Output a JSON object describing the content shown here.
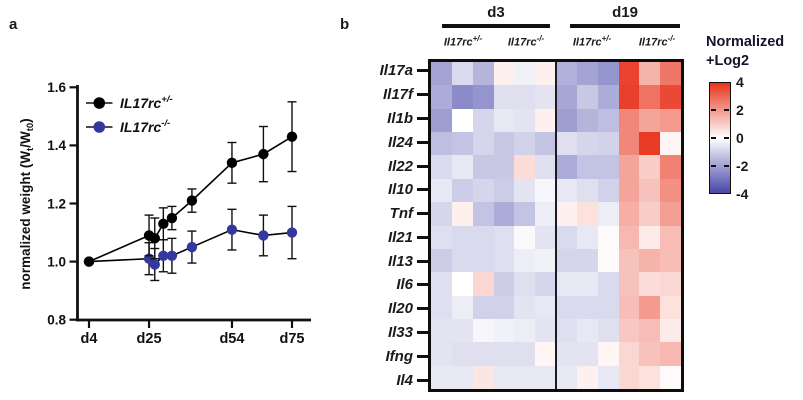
{
  "panel_a": {
    "label": "a"
  },
  "panel_b": {
    "label": "b"
  },
  "chart_data": [
    {
      "type": "line",
      "panel": "a",
      "title": "",
      "ylabel_parts": {
        "pre": "normalized weight (W",
        "sub1": "t",
        "mid": "/W",
        "sub2": "t0",
        "post": ")"
      },
      "ylim": [
        0.8,
        1.6
      ],
      "yticks": [
        "0.8",
        "1.0",
        "1.2",
        "1.4",
        "1.6"
      ],
      "xticks": [
        {
          "label": "d4",
          "day": 4
        },
        {
          "label": "d25",
          "day": 25
        },
        {
          "label": "d54",
          "day": 54
        },
        {
          "label": "d75",
          "day": 75
        }
      ],
      "x_days": [
        4,
        25,
        27,
        30,
        33,
        40,
        54,
        65,
        75
      ],
      "legend_position": "top-left",
      "series": [
        {
          "name_base": "IL17rc",
          "name_sup": "+/-",
          "marker_color": "#000000",
          "line_color": "#000000",
          "values": [
            1.0,
            1.09,
            1.08,
            1.13,
            1.15,
            1.21,
            1.34,
            1.37,
            1.43
          ],
          "errors": [
            0,
            0.07,
            0.07,
            0.055,
            0.04,
            0.04,
            0.07,
            0.095,
            0.12
          ]
        },
        {
          "name_base": "IL17rc",
          "name_sup": "-/-",
          "marker_color": "#34379d",
          "line_color": "#000000",
          "values": [
            1.0,
            1.01,
            0.99,
            1.02,
            1.02,
            1.05,
            1.11,
            1.09,
            1.1
          ],
          "errors": [
            0,
            0.055,
            0.055,
            0.055,
            0.06,
            0.055,
            0.07,
            0.07,
            0.09
          ]
        }
      ]
    },
    {
      "type": "heatmap",
      "panel": "b",
      "group_headers": [
        "d3",
        "d19"
      ],
      "col_groups": [
        {
          "day": "d3",
          "base": "Il17rc",
          "sup": "+/-",
          "cols": 3
        },
        {
          "day": "d3",
          "base": "Il17rc",
          "sup": "-/-",
          "cols": 3
        },
        {
          "day": "d19",
          "base": "Il17rc",
          "sup": "+/-",
          "cols": 3
        },
        {
          "day": "d19",
          "base": "Il17rc",
          "sup": "-/-",
          "cols": 3
        }
      ],
      "rows": [
        "Il17a",
        "Il17f",
        "Il1b",
        "Il24",
        "Il22",
        "Il10",
        "Tnf",
        "Il21",
        "Il13",
        "Il6",
        "Il20",
        "Il33",
        "Ifng",
        "Il4"
      ],
      "values": [
        [
          -2.0,
          -0.8,
          -1.6,
          0.3,
          -0.3,
          0.3,
          -1.7,
          -2.0,
          -2.3,
          3.7,
          1.5,
          2.7
        ],
        [
          -1.8,
          -2.5,
          -2.3,
          -0.7,
          -0.7,
          -0.6,
          -1.9,
          -1.2,
          -1.8,
          3.8,
          2.8,
          3.6
        ],
        [
          -2.1,
          0.0,
          -0.9,
          -0.5,
          -0.6,
          0.3,
          -2.1,
          -1.6,
          -1.4,
          2.4,
          1.8,
          2.0
        ],
        [
          -1.4,
          -1.3,
          -0.9,
          -1.2,
          -1.0,
          -1.3,
          -0.7,
          -0.9,
          -1.0,
          2.4,
          3.9,
          0.2
        ],
        [
          -0.8,
          -0.5,
          -1.2,
          -1.2,
          0.7,
          -0.7,
          -1.8,
          -1.3,
          -1.3,
          1.8,
          1.0,
          2.5
        ],
        [
          -0.5,
          -1.1,
          -0.9,
          -1.1,
          -0.6,
          -0.2,
          -0.5,
          -0.7,
          -1.0,
          1.8,
          1.2,
          2.2
        ],
        [
          -0.9,
          0.3,
          -1.3,
          -1.8,
          -1.3,
          -0.4,
          0.3,
          0.6,
          -0.4,
          1.6,
          1.0,
          1.9
        ],
        [
          -0.7,
          -0.8,
          -0.8,
          -0.7,
          -0.1,
          -0.6,
          -0.8,
          -0.5,
          0.1,
          1.4,
          0.4,
          1.3
        ],
        [
          -1.1,
          -0.8,
          -0.8,
          -0.7,
          -0.4,
          -0.3,
          -0.9,
          -0.9,
          0.1,
          1.2,
          1.5,
          1.3
        ],
        [
          -0.7,
          0.0,
          0.8,
          -1.1,
          -0.7,
          -0.9,
          -0.5,
          -0.5,
          -0.8,
          1.2,
          0.7,
          0.8
        ],
        [
          -0.7,
          -0.4,
          -1.0,
          -1.0,
          -0.6,
          -0.5,
          -0.8,
          -0.8,
          -0.8,
          1.3,
          2.0,
          0.6
        ],
        [
          -0.6,
          -0.6,
          -0.2,
          -0.3,
          -0.4,
          -0.6,
          -0.7,
          -0.5,
          -0.7,
          1.1,
          1.3,
          0.4
        ],
        [
          -0.6,
          -0.7,
          -0.7,
          -0.7,
          -0.7,
          0.2,
          -0.6,
          -0.6,
          0.2,
          0.8,
          1.2,
          1.4
        ],
        [
          -0.5,
          -0.5,
          0.5,
          -0.5,
          -0.5,
          -0.5,
          -0.5,
          0.3,
          -0.5,
          0.8,
          0.6,
          0.1
        ]
      ],
      "scale": {
        "title_line1": "Normalized",
        "title_line2": "+Log2",
        "min": -4,
        "max": 4,
        "ticks": [
          "4",
          "2",
          "0",
          "-2",
          "-4"
        ],
        "pos_color": "#e8351f",
        "mid_color": "#ffffff",
        "neg_color": "#4646a8"
      }
    }
  ]
}
